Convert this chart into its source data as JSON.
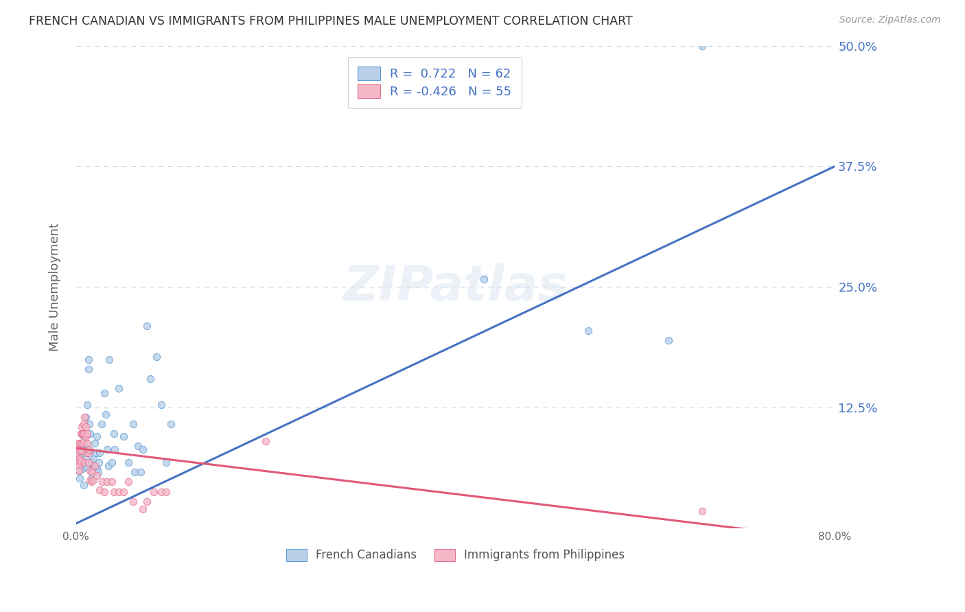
{
  "title": "FRENCH CANADIAN VS IMMIGRANTS FROM PHILIPPINES MALE UNEMPLOYMENT CORRELATION CHART",
  "source": "Source: ZipAtlas.com",
  "ylabel": "Male Unemployment",
  "xlim": [
    0.0,
    0.8
  ],
  "ylim": [
    -0.02,
    0.52
  ],
  "plot_ylim": [
    0.0,
    0.5
  ],
  "yticks": [
    0.0,
    0.125,
    0.25,
    0.375,
    0.5
  ],
  "ytick_labels": [
    "",
    "12.5%",
    "25.0%",
    "37.5%",
    "50.0%"
  ],
  "xticks": [
    0.0,
    0.2,
    0.4,
    0.6,
    0.8
  ],
  "xtick_labels": [
    "0.0%",
    "",
    "",
    "",
    "80.0%"
  ],
  "blue_R": 0.722,
  "blue_N": 62,
  "pink_R": -0.426,
  "pink_N": 55,
  "blue_fill_color": "#b8d0e8",
  "blue_edge_color": "#5b9bd5",
  "pink_fill_color": "#f5b8c8",
  "pink_edge_color": "#e07090",
  "blue_line_color": "#4472c4",
  "pink_line_color": "#e05878",
  "background_color": "#ffffff",
  "grid_color": "#c8d4e8",
  "watermark": "ZIPatlas",
  "legend_label_blue": "French Canadians",
  "legend_label_pink": "Immigrants from Philippines",
  "blue_line_x0": 0.0,
  "blue_line_y0": 0.005,
  "blue_line_x1": 0.8,
  "blue_line_y1": 0.375,
  "pink_line_x0": 0.0,
  "pink_line_y0": 0.083,
  "pink_line_x1": 0.8,
  "pink_line_y1": -0.012,
  "blue_scatter": [
    [
      0.002,
      0.075
    ],
    [
      0.003,
      0.06
    ],
    [
      0.004,
      0.068
    ],
    [
      0.004,
      0.052
    ],
    [
      0.005,
      0.078
    ],
    [
      0.006,
      0.07
    ],
    [
      0.007,
      0.088
    ],
    [
      0.007,
      0.062
    ],
    [
      0.008,
      0.045
    ],
    [
      0.008,
      0.095
    ],
    [
      0.009,
      0.08
    ],
    [
      0.01,
      0.115
    ],
    [
      0.01,
      0.072
    ],
    [
      0.011,
      0.088
    ],
    [
      0.011,
      0.063
    ],
    [
      0.012,
      0.128
    ],
    [
      0.012,
      0.082
    ],
    [
      0.013,
      0.165
    ],
    [
      0.013,
      0.175
    ],
    [
      0.014,
      0.108
    ],
    [
      0.015,
      0.098
    ],
    [
      0.015,
      0.08
    ],
    [
      0.016,
      0.052
    ],
    [
      0.017,
      0.068
    ],
    [
      0.017,
      0.058
    ],
    [
      0.018,
      0.062
    ],
    [
      0.018,
      0.072
    ],
    [
      0.019,
      0.058
    ],
    [
      0.02,
      0.088
    ],
    [
      0.021,
      0.078
    ],
    [
      0.022,
      0.095
    ],
    [
      0.022,
      0.062
    ],
    [
      0.023,
      0.058
    ],
    [
      0.024,
      0.068
    ],
    [
      0.025,
      0.078
    ],
    [
      0.027,
      0.108
    ],
    [
      0.03,
      0.14
    ],
    [
      0.031,
      0.118
    ],
    [
      0.033,
      0.082
    ],
    [
      0.034,
      0.065
    ],
    [
      0.035,
      0.175
    ],
    [
      0.038,
      0.068
    ],
    [
      0.04,
      0.098
    ],
    [
      0.041,
      0.082
    ],
    [
      0.045,
      0.145
    ],
    [
      0.05,
      0.095
    ],
    [
      0.055,
      0.068
    ],
    [
      0.06,
      0.108
    ],
    [
      0.062,
      0.058
    ],
    [
      0.065,
      0.085
    ],
    [
      0.068,
      0.058
    ],
    [
      0.07,
      0.082
    ],
    [
      0.075,
      0.21
    ],
    [
      0.078,
      0.155
    ],
    [
      0.085,
      0.178
    ],
    [
      0.09,
      0.128
    ],
    [
      0.095,
      0.068
    ],
    [
      0.1,
      0.108
    ],
    [
      0.43,
      0.258
    ],
    [
      0.54,
      0.205
    ],
    [
      0.625,
      0.195
    ],
    [
      0.66,
      0.5
    ]
  ],
  "pink_scatter": [
    [
      0.001,
      0.078
    ],
    [
      0.002,
      0.072
    ],
    [
      0.002,
      0.088
    ],
    [
      0.002,
      0.068
    ],
    [
      0.003,
      0.065
    ],
    [
      0.003,
      0.082
    ],
    [
      0.003,
      0.06
    ],
    [
      0.004,
      0.072
    ],
    [
      0.004,
      0.088
    ],
    [
      0.004,
      0.08
    ],
    [
      0.005,
      0.098
    ],
    [
      0.005,
      0.07
    ],
    [
      0.005,
      0.088
    ],
    [
      0.006,
      0.08
    ],
    [
      0.006,
      0.105
    ],
    [
      0.006,
      0.098
    ],
    [
      0.007,
      0.088
    ],
    [
      0.007,
      0.098
    ],
    [
      0.008,
      0.09
    ],
    [
      0.008,
      0.108
    ],
    [
      0.008,
      0.098
    ],
    [
      0.009,
      0.115
    ],
    [
      0.009,
      0.068
    ],
    [
      0.01,
      0.095
    ],
    [
      0.01,
      0.105
    ],
    [
      0.011,
      0.078
    ],
    [
      0.012,
      0.088
    ],
    [
      0.012,
      0.098
    ],
    [
      0.013,
      0.078
    ],
    [
      0.013,
      0.068
    ],
    [
      0.014,
      0.082
    ],
    [
      0.015,
      0.05
    ],
    [
      0.015,
      0.06
    ],
    [
      0.016,
      0.048
    ],
    [
      0.017,
      0.058
    ],
    [
      0.018,
      0.05
    ],
    [
      0.02,
      0.065
    ],
    [
      0.022,
      0.055
    ],
    [
      0.025,
      0.04
    ],
    [
      0.028,
      0.048
    ],
    [
      0.03,
      0.038
    ],
    [
      0.033,
      0.048
    ],
    [
      0.038,
      0.048
    ],
    [
      0.04,
      0.038
    ],
    [
      0.045,
      0.038
    ],
    [
      0.05,
      0.038
    ],
    [
      0.055,
      0.048
    ],
    [
      0.06,
      0.028
    ],
    [
      0.07,
      0.02
    ],
    [
      0.075,
      0.028
    ],
    [
      0.082,
      0.038
    ],
    [
      0.09,
      0.038
    ],
    [
      0.095,
      0.038
    ],
    [
      0.2,
      0.09
    ],
    [
      0.66,
      0.018
    ]
  ]
}
